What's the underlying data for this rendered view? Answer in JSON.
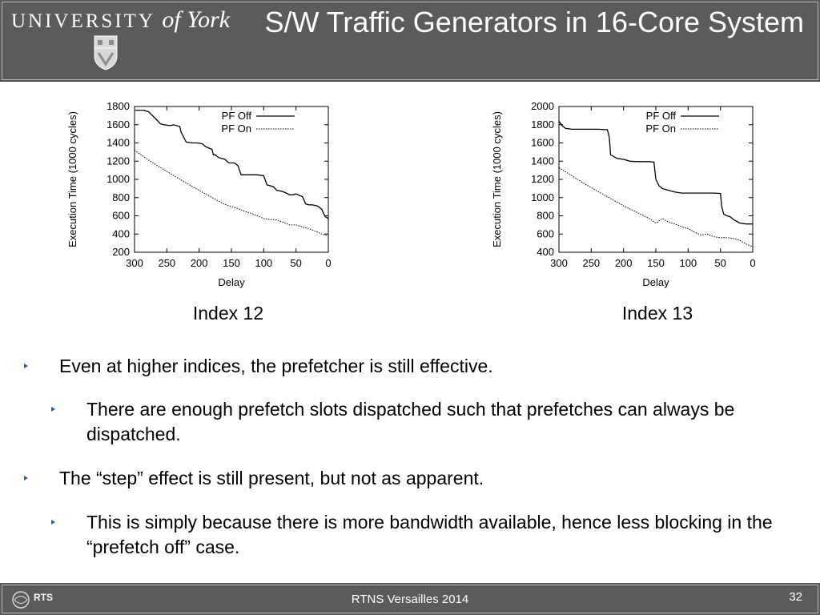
{
  "header": {
    "logo_text": "UNIVERSITY",
    "logo_text_of_york": "of York",
    "title": "S/W Traffic Generators in 16-Core System"
  },
  "charts": [
    {
      "caption": "Index 12",
      "chart_data": {
        "type": "line",
        "xlabel": "Delay",
        "ylabel": "Execution Time (1000 cycles)",
        "xlim": [
          300,
          0
        ],
        "ylim": [
          200,
          1800
        ],
        "xticks": [
          300,
          250,
          200,
          150,
          100,
          50,
          0
        ],
        "yticks": [
          200,
          400,
          600,
          800,
          1000,
          1200,
          1400,
          1600,
          1800
        ],
        "legend_position": "top-right",
        "series": [
          {
            "name": "PF Off",
            "style": "solid",
            "x": [
              300,
              285,
              284,
              278,
              265,
              260,
              255,
              245,
              240,
              230,
              228,
              220,
              210,
              203,
              195,
              190,
              180,
              178,
              175,
              170,
              160,
              154,
              145,
              140,
              135,
              130,
              110,
              100,
              95,
              90,
              85,
              80,
              72,
              65,
              60,
              55,
              50,
              40,
              35,
              30,
              25,
              18,
              15,
              10,
              5,
              0
            ],
            "y": [
              1760,
              1760,
              1755,
              1740,
              1650,
              1610,
              1600,
              1590,
              1600,
              1580,
              1520,
              1410,
              1400,
              1400,
              1390,
              1360,
              1330,
              1270,
              1270,
              1240,
              1220,
              1180,
              1180,
              1150,
              1050,
              1050,
              1050,
              1040,
              940,
              930,
              920,
              880,
              870,
              850,
              830,
              830,
              840,
              810,
              730,
              720,
              720,
              710,
              700,
              670,
              590,
              570
            ]
          },
          {
            "name": "PF On",
            "style": "dotted",
            "x": [
              300,
              280,
              260,
              240,
              220,
              200,
              180,
              160,
              150,
              140,
              130,
              120,
              110,
              100,
              90,
              80,
              70,
              60,
              50,
              40,
              30,
              20,
              10,
              0
            ],
            "y": [
              1320,
              1220,
              1130,
              1045,
              960,
              880,
              800,
              725,
              700,
              680,
              650,
              630,
              600,
              570,
              560,
              555,
              530,
              500,
              500,
              480,
              460,
              430,
              400,
              380
            ]
          }
        ]
      }
    },
    {
      "caption": "Index 13",
      "chart_data": {
        "type": "line",
        "xlabel": "Delay",
        "ylabel": "Execution Time (1000 cycles)",
        "xlim": [
          300,
          0
        ],
        "ylim": [
          400,
          2000
        ],
        "xticks": [
          300,
          250,
          200,
          150,
          100,
          50,
          0
        ],
        "yticks": [
          400,
          600,
          800,
          1000,
          1200,
          1400,
          1600,
          1800,
          2000
        ],
        "legend_position": "top-right",
        "series": [
          {
            "name": "PF Off",
            "style": "solid",
            "x": [
              300,
              295,
              290,
              280,
              260,
              240,
              225,
              222,
              220,
              210,
              200,
              190,
              180,
              170,
              160,
              155,
              153,
              150,
              145,
              140,
              130,
              120,
              110,
              100,
              90,
              80,
              70,
              60,
              50,
              48,
              45,
              40,
              35,
              30,
              20,
              10,
              5,
              0
            ],
            "y": [
              1840,
              1790,
              1760,
              1750,
              1750,
              1750,
              1745,
              1660,
              1470,
              1430,
              1420,
              1400,
              1395,
              1395,
              1395,
              1390,
              1390,
              1200,
              1130,
              1100,
              1080,
              1060,
              1050,
              1050,
              1050,
              1050,
              1050,
              1050,
              1045,
              900,
              820,
              800,
              790,
              760,
              720,
              710,
              710,
              710
            ]
          },
          {
            "name": "PF On",
            "style": "dotted",
            "x": [
              300,
              280,
              260,
              240,
              220,
              200,
              180,
              160,
              150,
              140,
              130,
              120,
              110,
              100,
              90,
              80,
              70,
              60,
              50,
              40,
              30,
              20,
              10,
              0
            ],
            "y": [
              1330,
              1240,
              1150,
              1070,
              990,
              910,
              840,
              770,
              720,
              770,
              730,
              710,
              680,
              660,
              620,
              590,
              600,
              570,
              560,
              560,
              550,
              530,
              490,
              460
            ]
          }
        ]
      }
    }
  ],
  "bullets": [
    {
      "level": 1,
      "text": "Even at higher indices, the prefetcher is still effective."
    },
    {
      "level": 2,
      "text": "There are enough prefetch slots dispatched such that prefetches can always be dispatched."
    },
    {
      "level": 1,
      "text": "The “step” effect is still present, but not as apparent."
    },
    {
      "level": 2,
      "text": "This is simply because there is more bandwidth available, hence less blocking in the “prefetch off” case."
    }
  ],
  "footer": {
    "logo_text": "RTS",
    "text": "RTNS Versailles 2014",
    "page_number": "32"
  },
  "colors": {
    "header_bg": "#5b5b5b",
    "bullet_arrow": "#2c58a7"
  }
}
